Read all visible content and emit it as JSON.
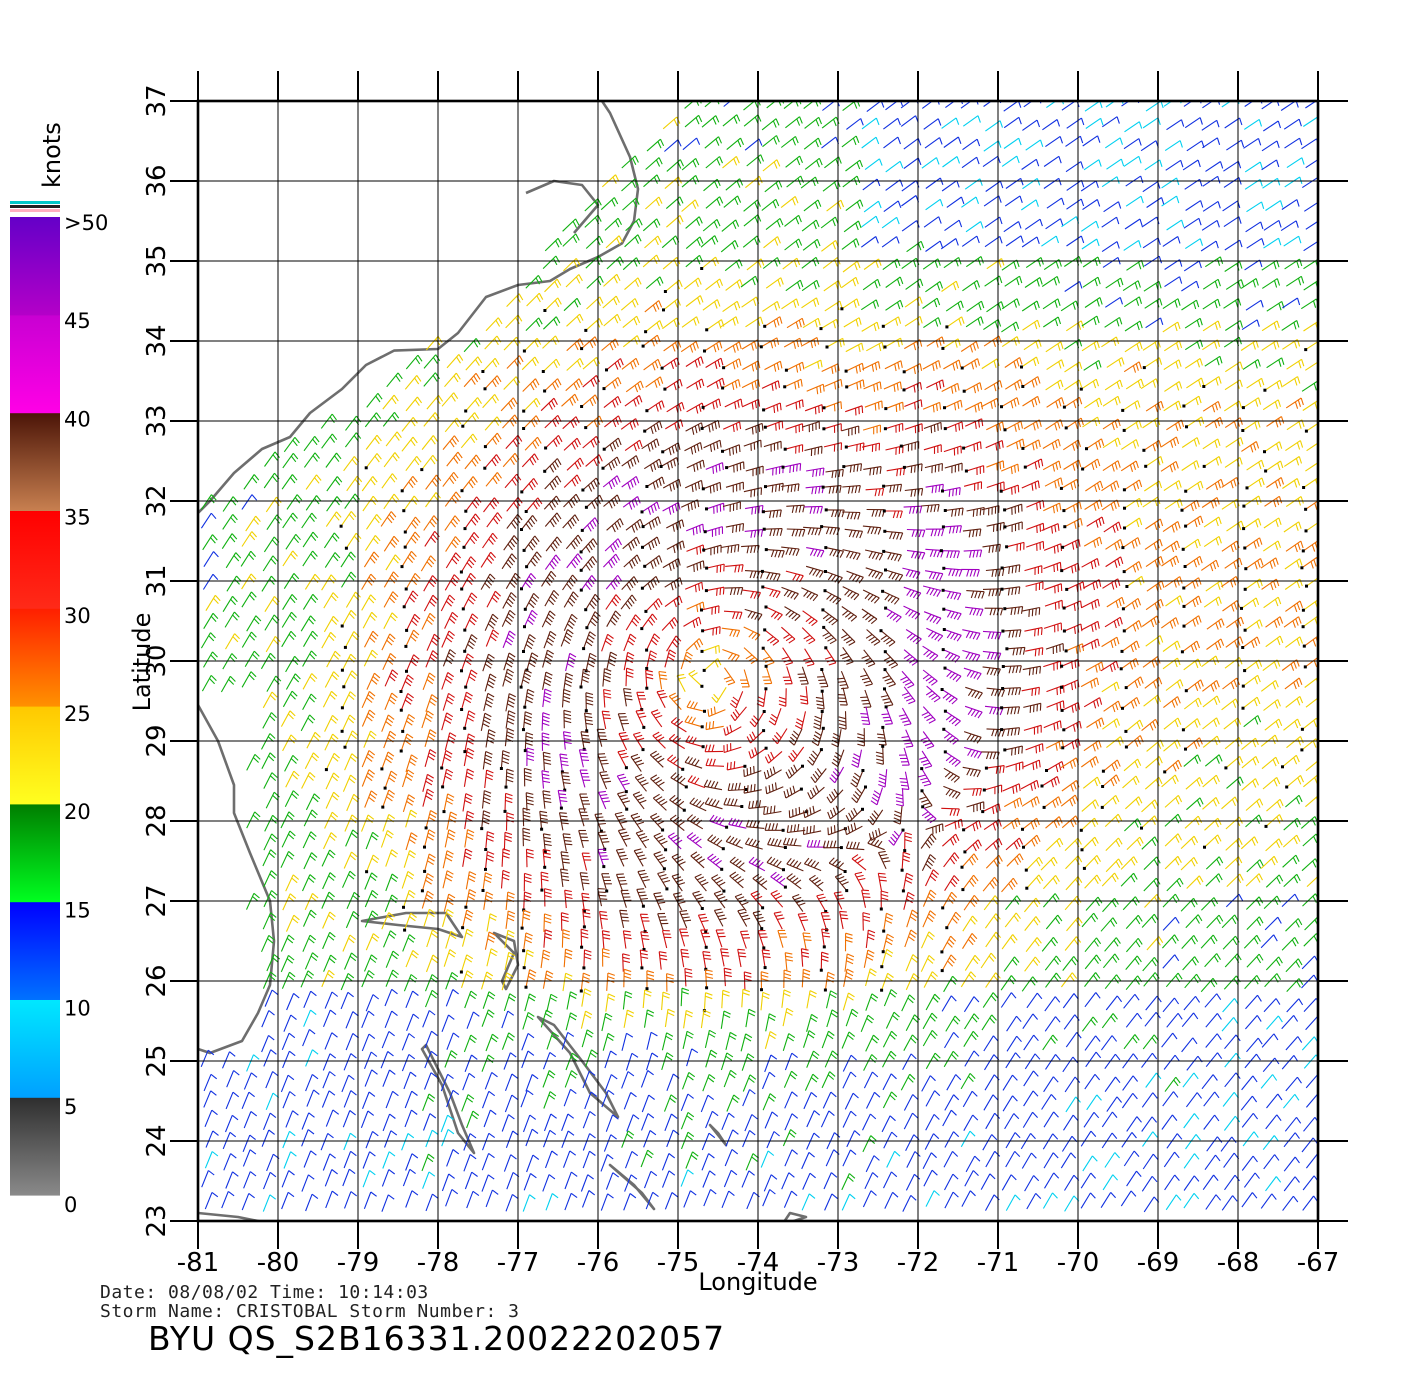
{
  "map": {
    "lon_range": [
      -81,
      -67
    ],
    "lat_range": [
      23,
      37
    ],
    "lon_ticks": [
      "-81",
      "-80",
      "-79",
      "-78",
      "-77",
      "-76",
      "-75",
      "-74",
      "-73",
      "-72",
      "-71",
      "-70",
      "-69",
      "-68",
      "-67"
    ],
    "lat_ticks": [
      "23",
      "24",
      "25",
      "26",
      "27",
      "28",
      "29",
      "30",
      "31",
      "32",
      "33",
      "34",
      "35",
      "36",
      "37"
    ],
    "xlabel": "Longitude",
    "ylabel": "Latitude",
    "grid": true,
    "coastline_color": "#6e6e6e",
    "features": [
      "North Carolina coast",
      "Florida coast",
      "Bahamas islands",
      "Cuba coast"
    ],
    "storm_center": {
      "lon": -74.6,
      "lat": 29.8
    }
  },
  "colorbar": {
    "unit_label": "knots",
    "labels": [
      ">50",
      "45",
      "40",
      "35",
      "30",
      "25",
      "20",
      "15",
      "10",
      "5",
      "0"
    ],
    "bands": [
      {
        "range": "0-5",
        "top_color": "#2e2e2e",
        "bottom_color": "#8a8a8a"
      },
      {
        "range": "5-10",
        "top_color": "#00e8ff",
        "bottom_color": "#00a0ff"
      },
      {
        "range": "10-15",
        "top_color": "#0000ff",
        "bottom_color": "#0072ff"
      },
      {
        "range": "15-20",
        "top_color": "#007d00",
        "bottom_color": "#00ff20"
      },
      {
        "range": "20-25",
        "top_color": "#ffc800",
        "bottom_color": "#ffff20"
      },
      {
        "range": "25-30",
        "top_color": "#ff1e00",
        "bottom_color": "#ff9100"
      },
      {
        "range": "30-35",
        "top_color": "#ff0000",
        "bottom_color": "#ff2a18"
      },
      {
        "range": "35-40",
        "top_color": "#4b1407",
        "bottom_color": "#c88050"
      },
      {
        "range": "40-45",
        "top_color": "#c800d2",
        "bottom_color": "#ff00e6"
      },
      {
        "range": "45-50",
        "top_color": "#6400c8",
        "bottom_color": "#b400c8"
      }
    ],
    "top_swatch_colors": [
      "#00c8c8",
      "#202020",
      "#ffb0c0"
    ]
  },
  "wind_colors": {
    "5-10": "#00d0f0",
    "10-15": "#1030e0",
    "15-20": "#10b010",
    "20-25": "#f0d000",
    "25-30": "#f07000",
    "30-35": "#d01010",
    "35-40": "#602010",
    "40-50": "#a000c0"
  },
  "info": {
    "line1": "Date: 08/08/02   Time: 10:14:03",
    "line2": "Storm Name: CRISTOBAL   Storm Number: 3",
    "product_id": "BYU QS_S2B16331.20022202057"
  }
}
